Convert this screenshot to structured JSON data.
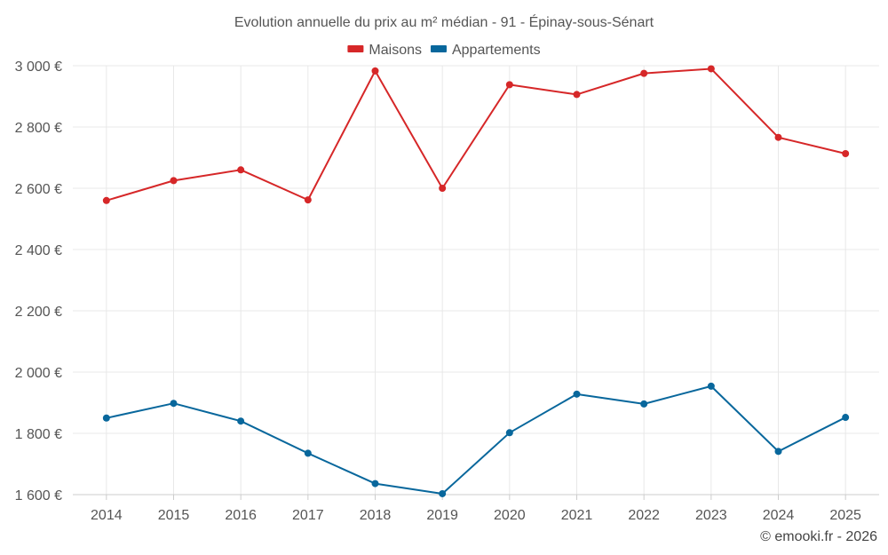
{
  "chart_data": {
    "type": "line",
    "title": "Evolution annuelle du prix au m² médian - 91 - Épinay-sous-Sénart",
    "categories": [
      "2014",
      "2015",
      "2016",
      "2017",
      "2018",
      "2019",
      "2020",
      "2021",
      "2022",
      "2023",
      "2024",
      "2025"
    ],
    "series": [
      {
        "name": "Maisons",
        "color": "#d62728",
        "values": [
          2560,
          2625,
          2660,
          2562,
          2983,
          2600,
          2938,
          2906,
          2975,
          2990,
          2766,
          2713
        ]
      },
      {
        "name": "Appartements",
        "color": "#08679c",
        "values": [
          1850,
          1898,
          1840,
          1735,
          1636,
          1603,
          1802,
          1928,
          1896,
          1954,
          1741,
          1852
        ]
      }
    ],
    "ylim": [
      1600,
      3000
    ],
    "yticks": [
      1600,
      1800,
      2000,
      2200,
      2400,
      2600,
      2800,
      3000
    ],
    "ytick_labels": [
      "1 600 €",
      "1 800 €",
      "2 000 €",
      "2 200 €",
      "2 400 €",
      "2 600 €",
      "2 800 €",
      "3 000 €"
    ],
    "legend_position": "top-center",
    "grid": true
  },
  "credit": "© emooki.fr - 2026"
}
